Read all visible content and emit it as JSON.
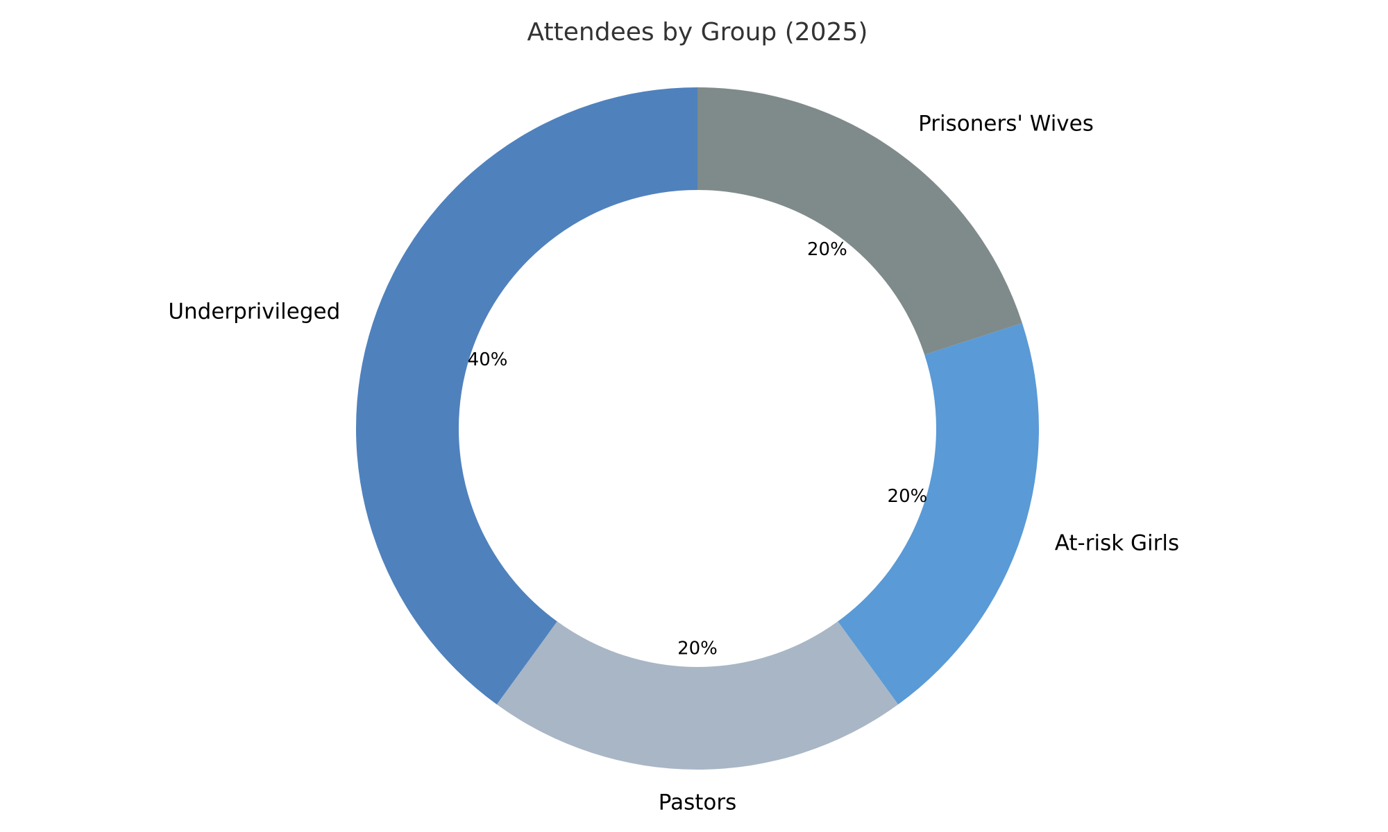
{
  "chart_data": {
    "type": "pie",
    "style": "donut",
    "title": "Attendees by Group (2025)",
    "start": "top, clockwise",
    "slices": [
      {
        "label": "Prisoners' Wives",
        "value": 20,
        "pct_label": "20%",
        "color": "#7f8b8a"
      },
      {
        "label": "At-risk Girls",
        "value": 20,
        "pct_label": "20%",
        "color": "#5a9ad6"
      },
      {
        "label": "Pastors",
        "value": 20,
        "pct_label": "20%",
        "color": "#a8b6c6"
      },
      {
        "label": "Underprivileged",
        "value": 40,
        "pct_label": "40%",
        "color": "#4f81bd"
      }
    ]
  }
}
